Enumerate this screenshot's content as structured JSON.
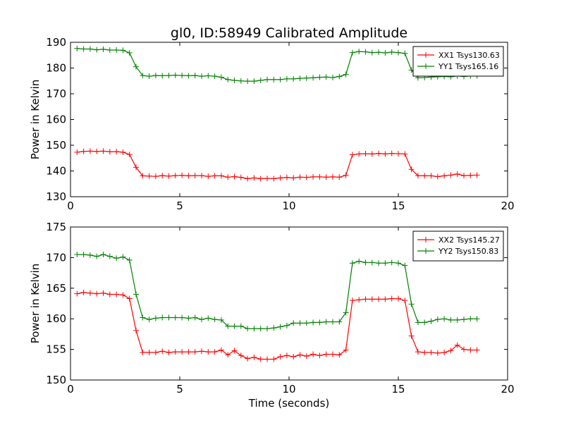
{
  "chart_data": [
    {
      "type": "line",
      "title": "gl0, ID:58949 Calibrated Amplitude",
      "xlabel": "",
      "ylabel": "Power in Kelvin",
      "xlim": [
        0,
        20
      ],
      "ylim": [
        130,
        190
      ],
      "xticks": [
        "0",
        "5",
        "10",
        "15",
        "20"
      ],
      "yticks": [
        "130",
        "140",
        "150",
        "160",
        "170",
        "180",
        "190"
      ],
      "legend_position": "top-right",
      "x": [
        0.3,
        0.6,
        0.9,
        1.2,
        1.5,
        1.8,
        2.1,
        2.4,
        2.7,
        3.0,
        3.3,
        3.6,
        3.9,
        4.2,
        4.5,
        4.8,
        5.1,
        5.4,
        5.7,
        6.0,
        6.3,
        6.6,
        6.9,
        7.2,
        7.5,
        7.8,
        8.1,
        8.4,
        8.7,
        9.0,
        9.3,
        9.6,
        9.9,
        10.2,
        10.5,
        10.8,
        11.1,
        11.4,
        11.7,
        12.0,
        12.3,
        12.6,
        12.9,
        13.2,
        13.5,
        13.8,
        14.1,
        14.4,
        14.7,
        15.0,
        15.3,
        15.6,
        15.9,
        16.2,
        16.5,
        16.8,
        17.1,
        17.4,
        17.7,
        18.0,
        18.3,
        18.6
      ],
      "series": [
        {
          "name": "XX1 Tsys130.63",
          "color": "#ff0000",
          "values": [
            147.3,
            147.6,
            147.7,
            147.6,
            147.7,
            147.5,
            147.5,
            147.3,
            146.4,
            141.4,
            138.1,
            138.0,
            137.9,
            138.2,
            138.0,
            138.2,
            138.3,
            138.1,
            138.2,
            138.2,
            137.9,
            138.1,
            138.1,
            137.6,
            137.8,
            137.5,
            137.0,
            137.3,
            137.0,
            137.1,
            137.0,
            137.3,
            137.5,
            137.3,
            137.6,
            137.5,
            137.7,
            137.7,
            137.6,
            137.7,
            137.6,
            138.3,
            146.3,
            146.6,
            146.7,
            146.6,
            146.8,
            146.6,
            146.8,
            146.7,
            146.6,
            140.6,
            138.2,
            138.1,
            138.1,
            137.8,
            138.1,
            138.4,
            138.8,
            138.2,
            138.3,
            138.4
          ]
        },
        {
          "name": "YY1 Tsys165.16",
          "color": "#008000",
          "values": [
            187.6,
            187.4,
            187.4,
            187.1,
            187.3,
            187.0,
            187.0,
            186.9,
            185.9,
            180.5,
            177.1,
            176.8,
            177.1,
            177.0,
            177.1,
            177.2,
            177.1,
            177.0,
            177.1,
            176.8,
            177.0,
            176.8,
            176.4,
            175.5,
            175.2,
            175.0,
            174.9,
            174.9,
            175.2,
            175.5,
            175.5,
            175.5,
            175.8,
            175.8,
            176.0,
            176.1,
            176.2,
            176.4,
            176.5,
            176.3,
            176.7,
            177.5,
            186.0,
            186.4,
            186.3,
            186.0,
            186.1,
            185.9,
            186.2,
            186.0,
            185.7,
            179.2,
            176.2,
            176.3,
            176.5,
            176.6,
            176.7,
            176.6,
            176.9,
            176.7,
            176.9,
            177.0
          ]
        }
      ]
    },
    {
      "type": "line",
      "title": "",
      "xlabel": "Time (seconds)",
      "ylabel": "Power in Kelvin",
      "xlim": [
        0,
        20
      ],
      "ylim": [
        150,
        175
      ],
      "xticks": [
        "0",
        "5",
        "10",
        "15",
        "20"
      ],
      "yticks": [
        "150",
        "155",
        "160",
        "165",
        "170",
        "175"
      ],
      "legend_position": "top-right",
      "x": [
        0.3,
        0.6,
        0.9,
        1.2,
        1.5,
        1.8,
        2.1,
        2.4,
        2.7,
        3.0,
        3.3,
        3.6,
        3.9,
        4.2,
        4.5,
        4.8,
        5.1,
        5.4,
        5.7,
        6.0,
        6.3,
        6.6,
        6.9,
        7.2,
        7.5,
        7.8,
        8.1,
        8.4,
        8.7,
        9.0,
        9.3,
        9.6,
        9.9,
        10.2,
        10.5,
        10.8,
        11.1,
        11.4,
        11.7,
        12.0,
        12.3,
        12.6,
        12.9,
        13.2,
        13.5,
        13.8,
        14.1,
        14.4,
        14.7,
        15.0,
        15.3,
        15.6,
        15.9,
        16.2,
        16.5,
        16.8,
        17.1,
        17.4,
        17.7,
        18.0,
        18.3,
        18.6
      ],
      "series": [
        {
          "name": "XX2 Tsys145.27",
          "color": "#ff0000",
          "values": [
            164.1,
            164.3,
            164.2,
            164.1,
            164.2,
            164.0,
            164.0,
            163.9,
            163.3,
            158.1,
            154.5,
            154.5,
            154.5,
            154.7,
            154.5,
            154.6,
            154.6,
            154.6,
            154.6,
            154.7,
            154.6,
            154.6,
            154.9,
            154.1,
            154.8,
            154.0,
            153.5,
            153.7,
            153.4,
            153.4,
            153.4,
            153.8,
            154.0,
            153.8,
            154.1,
            153.9,
            154.2,
            154.0,
            154.2,
            154.2,
            154.1,
            154.9,
            163.0,
            163.1,
            163.2,
            163.2,
            163.2,
            163.2,
            163.3,
            163.3,
            163.0,
            157.2,
            154.6,
            154.5,
            154.5,
            154.4,
            154.5,
            154.8,
            155.7,
            155.0,
            154.9,
            154.9
          ]
        },
        {
          "name": "YY2 Tsys150.83",
          "color": "#008000",
          "values": [
            170.5,
            170.5,
            170.4,
            170.2,
            170.5,
            170.2,
            169.9,
            170.1,
            169.6,
            164.0,
            160.2,
            159.9,
            160.1,
            160.2,
            160.2,
            160.2,
            160.2,
            160.1,
            160.2,
            159.9,
            160.1,
            159.9,
            159.8,
            158.8,
            158.8,
            158.8,
            158.4,
            158.4,
            158.4,
            158.4,
            158.5,
            158.7,
            158.9,
            159.3,
            159.3,
            159.3,
            159.4,
            159.4,
            159.5,
            159.5,
            159.5,
            161.0,
            169.1,
            169.4,
            169.2,
            169.2,
            169.1,
            169.1,
            169.2,
            169.1,
            168.7,
            162.4,
            159.4,
            159.4,
            159.6,
            159.9,
            160.0,
            159.8,
            159.8,
            159.9,
            160.0,
            160.0
          ]
        }
      ]
    }
  ]
}
